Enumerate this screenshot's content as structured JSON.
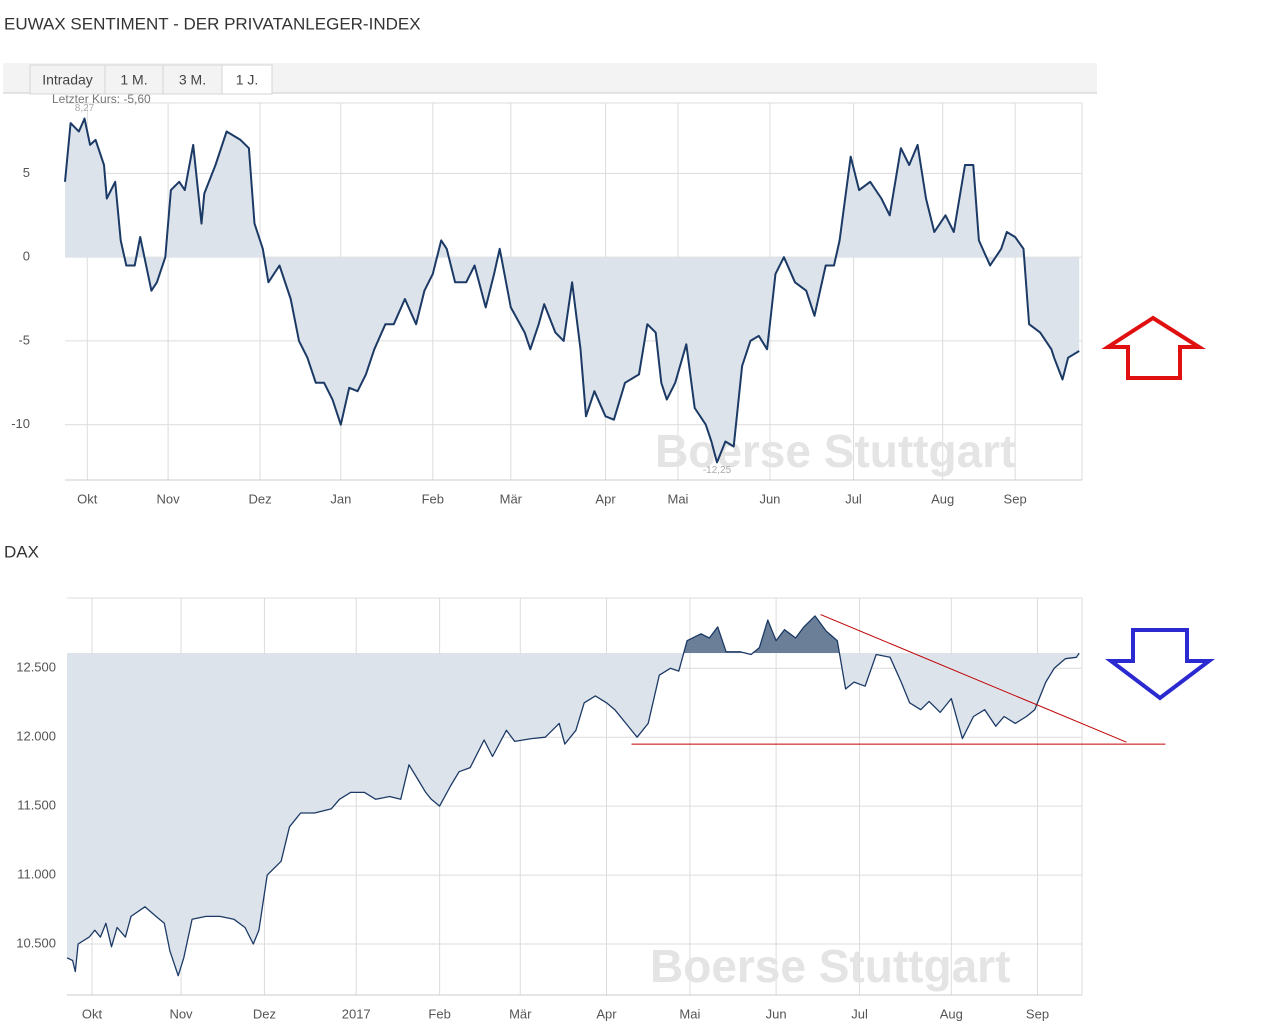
{
  "tabs": [
    "Intraday",
    "1 M.",
    "3 M.",
    "1 J."
  ],
  "active_tab": 3,
  "watermark": "Boerse Stuttgart",
  "chart_data": [
    {
      "type": "area",
      "title": "EUWAX SENTIMENT - DER PRIVATANLEGER-INDEX",
      "last_price_label": "Letzter Kurs: -5,60",
      "color": "#1c3a66",
      "fill_color": "#dde3ea",
      "area_baseline": 0,
      "xlim": [
        0,
        365
      ],
      "ylim": [
        -13.3,
        9.2
      ],
      "yticks": [
        5,
        0,
        -5,
        -10
      ],
      "grid": true,
      "xticks": [
        {
          "value": 8,
          "label": "Okt"
        },
        {
          "value": 37,
          "label": "Nov"
        },
        {
          "value": 70,
          "label": "Dez"
        },
        {
          "value": 99,
          "label": "Jan"
        },
        {
          "value": 132,
          "label": "Feb"
        },
        {
          "value": 160,
          "label": "Mär"
        },
        {
          "value": 194,
          "label": "Apr"
        },
        {
          "value": 220,
          "label": "Mai"
        },
        {
          "value": 253,
          "label": "Jun"
        },
        {
          "value": 283,
          "label": "Jul"
        },
        {
          "value": 315,
          "label": "Aug"
        },
        {
          "value": 341,
          "label": "Sep"
        }
      ],
      "x": [
        0,
        2,
        5,
        7,
        9,
        11,
        14,
        15,
        18,
        20,
        22,
        25,
        27,
        31,
        33,
        36,
        38,
        41,
        43,
        46,
        49,
        50,
        54,
        58,
        63,
        66,
        68,
        71,
        73,
        77,
        81,
        84,
        87,
        90,
        93,
        96,
        99,
        102,
        105,
        108,
        111,
        115,
        118,
        122,
        126,
        129,
        132,
        135,
        137,
        140,
        144,
        147,
        151,
        154,
        156,
        160,
        165,
        167,
        170,
        172,
        176,
        179,
        182,
        185,
        187,
        190,
        194,
        197,
        201,
        206,
        209,
        212,
        214,
        216,
        219,
        223,
        226,
        230,
        232,
        234,
        237,
        240,
        243,
        246,
        249,
        252,
        255,
        258,
        262,
        266,
        269,
        273,
        276,
        278,
        282,
        285,
        289,
        293,
        296,
        300,
        303,
        306,
        309,
        312,
        316,
        319,
        323,
        326,
        328,
        332,
        336,
        338,
        341,
        344,
        346,
        350,
        354,
        355,
        358,
        360,
        364
      ],
      "values": [
        4.5,
        8,
        7.5,
        8.27,
        6.7,
        7,
        5.5,
        3.5,
        4.5,
        1,
        -0.5,
        -0.5,
        1.2,
        -2,
        -1.5,
        0,
        4,
        4.5,
        4,
        6.7,
        2,
        3.8,
        5.5,
        7.5,
        7,
        6.5,
        2,
        0.5,
        -1.5,
        -0.5,
        -2.5,
        -5,
        -6,
        -7.5,
        -7.5,
        -8.5,
        -10,
        -7.8,
        -8,
        -7,
        -5.5,
        -4,
        -4,
        -2.5,
        -4,
        -2,
        -1,
        1,
        0.5,
        -1.5,
        -1.5,
        -0.5,
        -3,
        -1,
        0.5,
        -3,
        -4.5,
        -5.5,
        -4,
        -2.8,
        -4.5,
        -5,
        -1.5,
        -5.5,
        -9.5,
        -8,
        -9.5,
        -9.7,
        -7.5,
        -7,
        -4,
        -4.5,
        -7.5,
        -8.5,
        -7.5,
        -5.2,
        -9,
        -10,
        -11,
        -12.25,
        -11,
        -11.3,
        -6.5,
        -5,
        -4.7,
        -5.5,
        -1,
        0,
        -1.5,
        -2,
        -3.5,
        -0.5,
        -0.5,
        1,
        6,
        4,
        4.5,
        3.5,
        2.5,
        6.5,
        5.5,
        6.7,
        3.5,
        1.5,
        2.5,
        1.5,
        5.5,
        5.5,
        1,
        -0.5,
        0.5,
        1.5,
        1.2,
        0.5,
        -4,
        -4.5,
        -5.5,
        -6,
        -7.3,
        -6,
        -5.6
      ],
      "annotations": [
        {
          "text": "8,27",
          "x": 7,
          "y": 8.27,
          "pos": "above"
        },
        {
          "text": "-12,25",
          "x": 234,
          "y": -12.25,
          "pos": "below"
        }
      ]
    },
    {
      "type": "area",
      "title": "DAX",
      "color": "#1c3a66",
      "fill_color": "#dde3ea",
      "fill_above_color": "#6b7f99",
      "area_baseline": 12610,
      "xlim": [
        0,
        365
      ],
      "ylim": [
        10130,
        13010
      ],
      "grid": true,
      "yticks": [
        {
          "value": 12500,
          "label": "12.500"
        },
        {
          "value": 12000,
          "label": "12.000"
        },
        {
          "value": 11500,
          "label": "11.500"
        },
        {
          "value": 11000,
          "label": "11.000"
        },
        {
          "value": 10500,
          "label": "10.500"
        }
      ],
      "xticks": [
        {
          "value": 9,
          "label": "Okt"
        },
        {
          "value": 41,
          "label": "Nov"
        },
        {
          "value": 71,
          "label": "Dez"
        },
        {
          "value": 104,
          "label": "2017"
        },
        {
          "value": 134,
          "label": "Feb"
        },
        {
          "value": 163,
          "label": "Mär"
        },
        {
          "value": 194,
          "label": "Apr"
        },
        {
          "value": 224,
          "label": "Mai"
        },
        {
          "value": 255,
          "label": "Jun"
        },
        {
          "value": 285,
          "label": "Jul"
        },
        {
          "value": 318,
          "label": "Aug"
        },
        {
          "value": 349,
          "label": "Sep"
        }
      ],
      "x": [
        0,
        2,
        3,
        4,
        8,
        10,
        12,
        14,
        16,
        18,
        21,
        23,
        28,
        32,
        35,
        37,
        40,
        42,
        45,
        50,
        55,
        60,
        64,
        67,
        69,
        72,
        77,
        80,
        84,
        89,
        95,
        98,
        102,
        107,
        111,
        116,
        120,
        123,
        126,
        129,
        131,
        134,
        138,
        141,
        145,
        150,
        153,
        158,
        161,
        167,
        172,
        177,
        179,
        183,
        186,
        190,
        194,
        197,
        201,
        205,
        209,
        213,
        217,
        220,
        223,
        228,
        231,
        234,
        237,
        242,
        246,
        249,
        252,
        255,
        258,
        262,
        265,
        269,
        273,
        277,
        280,
        283,
        287,
        291,
        296,
        300,
        303,
        307,
        310,
        314,
        318,
        322,
        326,
        330,
        334,
        337,
        341,
        345,
        348,
        352,
        355,
        359,
        363,
        364
      ],
      "values": [
        10400,
        10380,
        10300,
        10500,
        10550,
        10600,
        10550,
        10650,
        10480,
        10620,
        10550,
        10700,
        10770,
        10700,
        10650,
        10450,
        10270,
        10400,
        10680,
        10700,
        10700,
        10680,
        10620,
        10500,
        10600,
        11000,
        11100,
        11350,
        11450,
        11450,
        11480,
        11550,
        11600,
        11600,
        11550,
        11570,
        11550,
        11800,
        11700,
        11600,
        11550,
        11500,
        11650,
        11750,
        11780,
        11980,
        11860,
        12050,
        11970,
        11990,
        12000,
        12100,
        11950,
        12050,
        12250,
        12300,
        12250,
        12200,
        12100,
        12000,
        12100,
        12450,
        12500,
        12480,
        12700,
        12750,
        12720,
        12800,
        12620,
        12620,
        12600,
        12650,
        12850,
        12700,
        12780,
        12720,
        12800,
        12880,
        12770,
        12700,
        12350,
        12400,
        12370,
        12600,
        12580,
        12400,
        12250,
        12200,
        12260,
        12180,
        12280,
        11990,
        12150,
        12200,
        12080,
        12150,
        12100,
        12150,
        12200,
        12400,
        12500,
        12570,
        12580,
        12610
      ],
      "trend_lines": [
        {
          "color": "#c00000",
          "x": [
            271,
            381
          ],
          "y": [
            12890,
            11964
          ]
        },
        {
          "color": "#c00000",
          "x": [
            203,
            395
          ],
          "y": [
            11950,
            11950
          ]
        }
      ]
    }
  ]
}
